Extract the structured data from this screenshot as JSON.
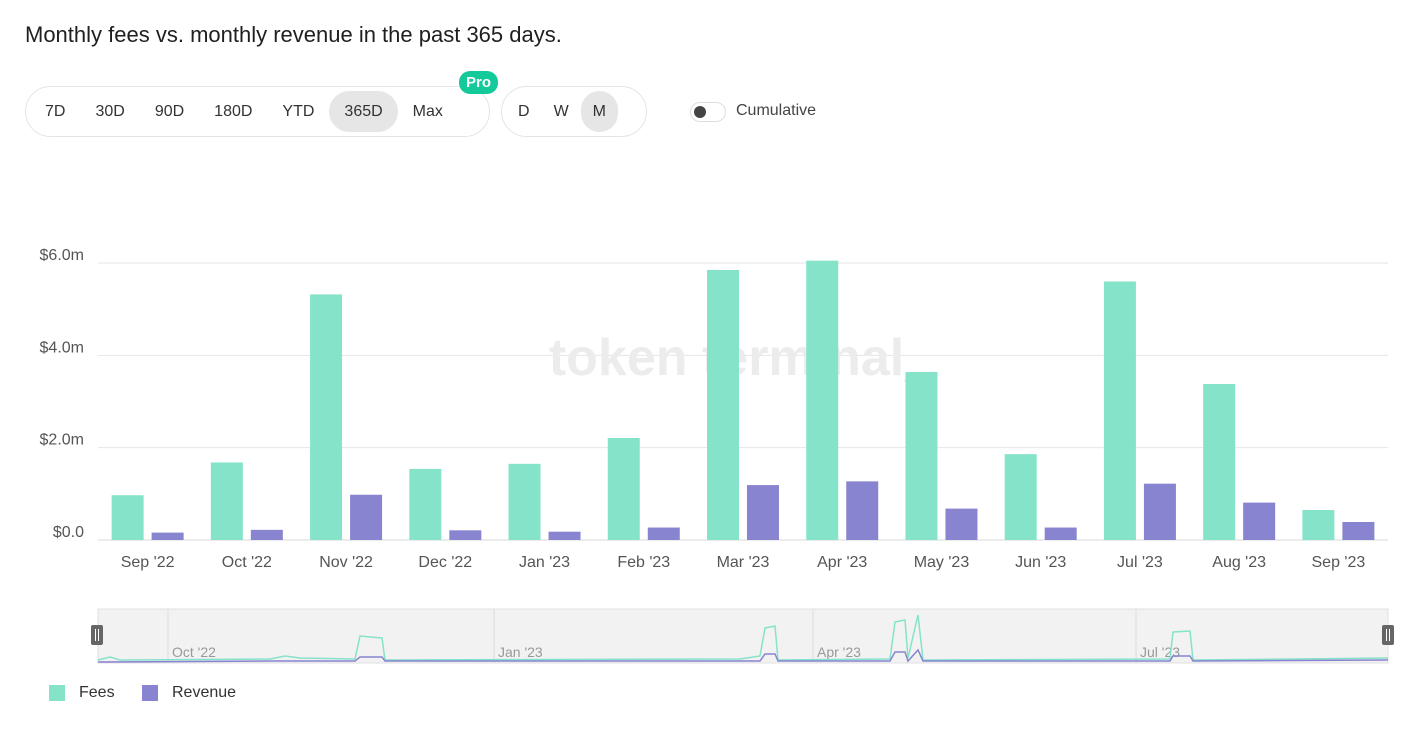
{
  "title": "Monthly fees vs. monthly revenue in the past 365 days.",
  "range_options": [
    "7D",
    "30D",
    "90D",
    "180D",
    "YTD",
    "365D",
    "Max"
  ],
  "range_selected": "365D",
  "pro_badge": "Pro",
  "granularity_options": [
    "D",
    "W",
    "M"
  ],
  "granularity_selected": "M",
  "cumulative_label": "Cumulative",
  "cumulative_on": false,
  "watermark": "token terminal_",
  "colors": {
    "fees": "#85e3ca",
    "revenue": "#8884cf"
  },
  "legend": [
    {
      "name": "Fees",
      "color": "#85e3ca"
    },
    {
      "name": "Revenue",
      "color": "#8884cf"
    }
  ],
  "chart_data": {
    "type": "bar",
    "title": "Monthly fees vs. monthly revenue in the past 365 days.",
    "categories": [
      "Sep '22",
      "Oct '22",
      "Nov '22",
      "Dec '22",
      "Jan '23",
      "Feb '23",
      "Mar '23",
      "Apr '23",
      "May '23",
      "Jun '23",
      "Jul '23",
      "Aug '23",
      "Sep '23"
    ],
    "series": [
      {
        "name": "Fees",
        "values": [
          0.97,
          1.68,
          5.32,
          1.54,
          1.65,
          2.21,
          5.85,
          6.05,
          3.64,
          1.86,
          5.6,
          3.38,
          0.65
        ]
      },
      {
        "name": "Revenue",
        "values": [
          0.16,
          0.22,
          0.98,
          0.21,
          0.18,
          0.27,
          1.19,
          1.27,
          0.68,
          0.27,
          1.22,
          0.81,
          0.39
        ]
      }
    ],
    "unit": "$m",
    "ylim": [
      0,
      6.0
    ],
    "yticks": [
      "$0.0",
      "$2.0m",
      "$4.0m",
      "$6.0m"
    ],
    "ytick_values": [
      0,
      2,
      4,
      6
    ],
    "grid": true,
    "legend_position": "bottom-left",
    "navigator_labels": [
      "Oct '22",
      "Jan '23",
      "Apr '23",
      "Jul '23"
    ]
  }
}
